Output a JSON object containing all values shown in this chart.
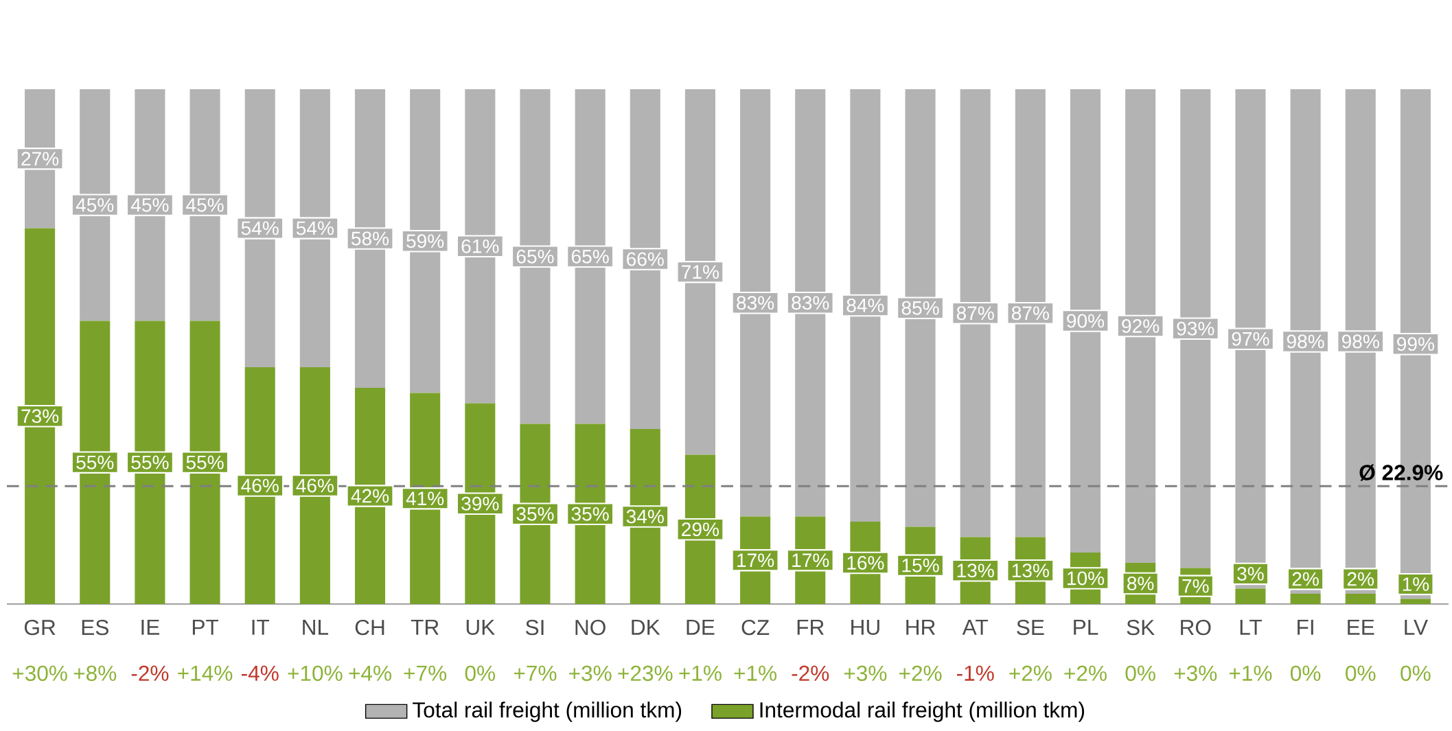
{
  "chart_data": {
    "type": "bar",
    "stacked": true,
    "categories": [
      "GR",
      "ES",
      "IE",
      "PT",
      "IT",
      "NL",
      "CH",
      "TR",
      "UK",
      "SI",
      "NO",
      "DK",
      "DE",
      "CZ",
      "FR",
      "HU",
      "HR",
      "AT",
      "SE",
      "PL",
      "SK",
      "RO",
      "LT",
      "FI",
      "EE",
      "LV"
    ],
    "series": [
      {
        "name": "Intermodal rail freight (million tkm)",
        "color": "#7aa22a",
        "values": [
          73,
          55,
          55,
          55,
          46,
          46,
          42,
          41,
          39,
          35,
          35,
          34,
          29,
          17,
          17,
          16,
          15,
          13,
          13,
          10,
          8,
          7,
          3,
          2,
          2,
          1
        ],
        "value_labels": [
          "73%",
          "55%",
          "55%",
          "55%",
          "46%",
          "46%",
          "42%",
          "41%",
          "39%",
          "35%",
          "35%",
          "34%",
          "29%",
          "17%",
          "17%",
          "16%",
          "15%",
          "13%",
          "13%",
          "10%",
          "8%",
          "7%",
          "3%",
          "2%",
          "2%",
          "1%"
        ]
      },
      {
        "name": "Total rail freight (million tkm)",
        "color": "#b3b3b3",
        "values": [
          27,
          45,
          45,
          45,
          54,
          54,
          58,
          59,
          61,
          65,
          65,
          66,
          71,
          83,
          83,
          84,
          85,
          87,
          87,
          90,
          92,
          93,
          97,
          98,
          98,
          99
        ],
        "value_labels": [
          "27%",
          "45%",
          "45%",
          "45%",
          "54%",
          "54%",
          "58%",
          "59%",
          "61%",
          "65%",
          "65%",
          "66%",
          "71%",
          "83%",
          "83%",
          "84%",
          "85%",
          "87%",
          "87%",
          "90%",
          "92%",
          "93%",
          "97%",
          "98%",
          "98%",
          "99%"
        ]
      }
    ],
    "ylim": [
      0,
      100
    ],
    "tick_labels": "x",
    "legend": "bottom",
    "ref_lines": [
      {
        "axis": "y",
        "value": 22.9,
        "label": "Ø 22.9%",
        "color": "#808080",
        "line_style": "dashed"
      }
    ],
    "annotations": [
      "+30%",
      "+8%",
      "-2%",
      "+14%",
      "-4%",
      "+10%",
      "+4%",
      "+7%",
      "0%",
      "+7%",
      "+3%",
      "+23%",
      "+1%",
      "+1%",
      "-2%",
      "+3%",
      "+2%",
      "-1%",
      "+2%",
      "+2%",
      "0%",
      "+3%",
      "+1%",
      "0%",
      "0%",
      "0%"
    ]
  }
}
